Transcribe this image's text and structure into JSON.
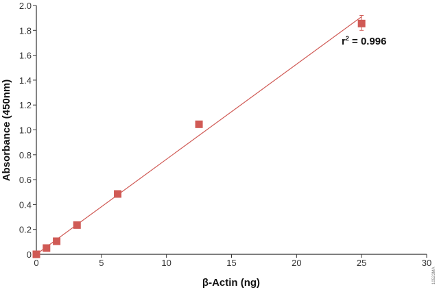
{
  "chart_data": {
    "type": "scatter",
    "xlabel": "β-Actin (ng)",
    "ylabel": "Absorbance (450nm)",
    "xlim": [
      0,
      30
    ],
    "ylim": [
      0,
      2.0
    ],
    "xticks": [
      "0",
      "5",
      "10",
      "15",
      "20",
      "25",
      "30"
    ],
    "yticks": [
      "0",
      "0.2",
      "0.4",
      "0.6",
      "0.8",
      "1.0",
      "1.2",
      "1.4",
      "1.6",
      "1.8",
      "2.0"
    ],
    "grid": false,
    "points": [
      {
        "x": 0,
        "y": 0.0
      },
      {
        "x": 0.78,
        "y": 0.05
      },
      {
        "x": 1.56,
        "y": 0.105
      },
      {
        "x": 3.125,
        "y": 0.235
      },
      {
        "x": 6.25,
        "y": 0.485
      },
      {
        "x": 12.5,
        "y": 1.045
      },
      {
        "x": 25,
        "y": 1.855,
        "error_low": 1.8,
        "error_high": 1.92
      }
    ],
    "fit_line": {
      "x": [
        0,
        25
      ],
      "y": [
        0.0,
        1.91
      ]
    },
    "annotation": {
      "text": "r",
      "superscript": "2",
      "rest": " = 0.996"
    },
    "marker_color": "#d05a55",
    "line_color": "#d05a55",
    "watermark": "10523MA"
  }
}
